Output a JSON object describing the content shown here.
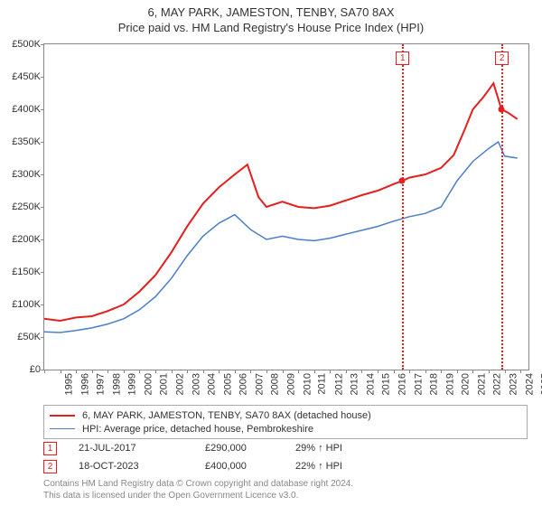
{
  "title_line1": "6, MAY PARK, JAMESTON, TENBY, SA70 8AX",
  "title_line2": "Price paid vs. HM Land Registry's House Price Index (HPI)",
  "chart": {
    "type": "line",
    "background_color": "#ffffff",
    "border_color": "#888888",
    "x_start_year": 1995,
    "x_end_year": 2025.5,
    "x_ticks": [
      1995,
      1996,
      1997,
      1998,
      1999,
      2000,
      2001,
      2002,
      2003,
      2004,
      2005,
      2006,
      2007,
      2008,
      2009,
      2010,
      2011,
      2012,
      2013,
      2014,
      2015,
      2016,
      2017,
      2018,
      2019,
      2020,
      2021,
      2022,
      2023,
      2024,
      2025
    ],
    "ylim": [
      0,
      500000
    ],
    "y_ticks": [
      0,
      50000,
      100000,
      150000,
      200000,
      250000,
      300000,
      350000,
      400000,
      450000,
      500000
    ],
    "y_tick_labels": [
      "£0",
      "£50K",
      "£100K",
      "£150K",
      "£200K",
      "£250K",
      "£300K",
      "£350K",
      "£400K",
      "£450K",
      "£500K"
    ],
    "series": [
      {
        "name": "6, MAY PARK, JAMESTON, TENBY, SA70 8AX (detached house)",
        "color": "#e2201e",
        "width": 2,
        "data": [
          [
            1995,
            78000
          ],
          [
            1996,
            75000
          ],
          [
            1997,
            80000
          ],
          [
            1998,
            82000
          ],
          [
            1999,
            90000
          ],
          [
            2000,
            100000
          ],
          [
            2001,
            120000
          ],
          [
            2002,
            145000
          ],
          [
            2003,
            180000
          ],
          [
            2004,
            220000
          ],
          [
            2005,
            255000
          ],
          [
            2006,
            280000
          ],
          [
            2007,
            300000
          ],
          [
            2007.8,
            315000
          ],
          [
            2008.5,
            265000
          ],
          [
            2009,
            250000
          ],
          [
            2010,
            258000
          ],
          [
            2011,
            250000
          ],
          [
            2012,
            248000
          ],
          [
            2013,
            252000
          ],
          [
            2014,
            260000
          ],
          [
            2015,
            268000
          ],
          [
            2016,
            275000
          ],
          [
            2017,
            285000
          ],
          [
            2017.55,
            290000
          ],
          [
            2018,
            295000
          ],
          [
            2019,
            300000
          ],
          [
            2020,
            310000
          ],
          [
            2020.8,
            330000
          ],
          [
            2021.5,
            370000
          ],
          [
            2022,
            400000
          ],
          [
            2022.7,
            420000
          ],
          [
            2023.3,
            440000
          ],
          [
            2023.8,
            400000
          ],
          [
            2024.2,
            395000
          ],
          [
            2024.8,
            385000
          ]
        ]
      },
      {
        "name": "HPI: Average price, detached house, Pembrokeshire",
        "color": "#4a7ec9",
        "width": 1.5,
        "data": [
          [
            1995,
            58000
          ],
          [
            1996,
            57000
          ],
          [
            1997,
            60000
          ],
          [
            1998,
            64000
          ],
          [
            1999,
            70000
          ],
          [
            2000,
            78000
          ],
          [
            2001,
            92000
          ],
          [
            2002,
            112000
          ],
          [
            2003,
            140000
          ],
          [
            2004,
            175000
          ],
          [
            2005,
            205000
          ],
          [
            2006,
            225000
          ],
          [
            2007,
            238000
          ],
          [
            2008,
            215000
          ],
          [
            2009,
            200000
          ],
          [
            2010,
            205000
          ],
          [
            2011,
            200000
          ],
          [
            2012,
            198000
          ],
          [
            2013,
            202000
          ],
          [
            2014,
            208000
          ],
          [
            2015,
            214000
          ],
          [
            2016,
            220000
          ],
          [
            2017,
            228000
          ],
          [
            2018,
            235000
          ],
          [
            2019,
            240000
          ],
          [
            2020,
            250000
          ],
          [
            2021,
            290000
          ],
          [
            2022,
            320000
          ],
          [
            2023,
            340000
          ],
          [
            2023.6,
            350000
          ],
          [
            2024,
            328000
          ],
          [
            2024.8,
            325000
          ]
        ]
      }
    ],
    "sale_markers": [
      {
        "num": "1",
        "year": 2017.55,
        "value": 290000,
        "color": "#e2201e"
      },
      {
        "num": "2",
        "year": 2023.8,
        "value": 400000,
        "color": "#e2201e"
      }
    ]
  },
  "legend": {
    "rows": [
      {
        "color": "#e2201e",
        "width": 2,
        "label": "6, MAY PARK, JAMESTON, TENBY, SA70 8AX (detached house)"
      },
      {
        "color": "#4a7ec9",
        "width": 1.5,
        "label": "HPI: Average price, detached house, Pembrokeshire"
      }
    ]
  },
  "sales": [
    {
      "num": "1",
      "color": "#e2201e",
      "date": "21-JUL-2017",
      "price": "£290,000",
      "delta": "29% ↑ HPI"
    },
    {
      "num": "2",
      "color": "#e2201e",
      "date": "18-OCT-2023",
      "price": "£400,000",
      "delta": "22% ↑ HPI"
    }
  ],
  "footer_line1": "Contains HM Land Registry data © Crown copyright and database right 2024.",
  "footer_line2": "This data is licensed under the Open Government Licence v3.0.",
  "label_fontsize": 11,
  "title_fontsize": 13
}
